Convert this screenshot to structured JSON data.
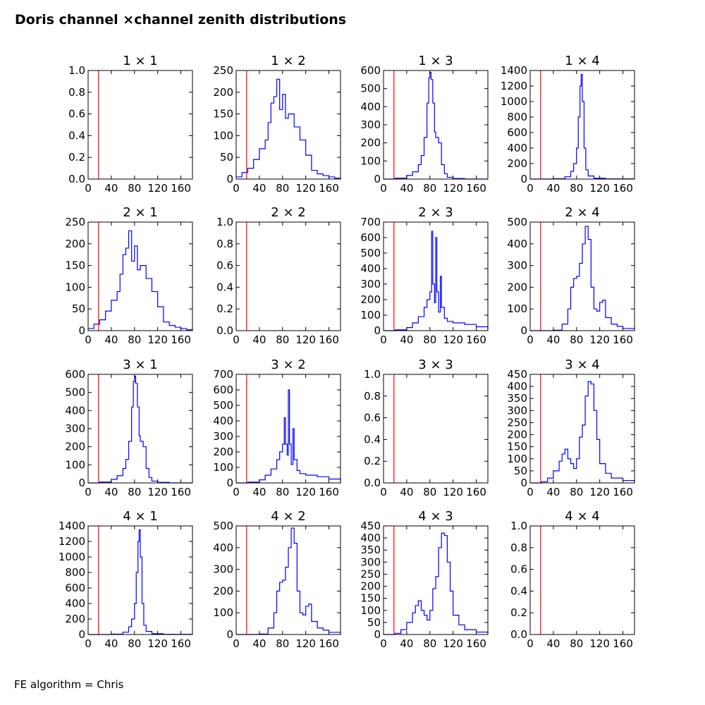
{
  "title": "Doris channel ×channel zenith distributions",
  "footer": "FE algorithm = Chris",
  "colors": {
    "histogram": "#0000ff",
    "cut_line": "#ff0000",
    "axes": "#000000"
  },
  "chart_data": [
    {
      "type": "line",
      "title": "1 × 1",
      "xlim": [
        0,
        180
      ],
      "ylim": [
        0,
        1
      ],
      "xticks": [
        0,
        40,
        80,
        120,
        160
      ],
      "yticks": [
        0.0,
        0.2,
        0.4,
        0.6,
        0.8,
        1.0
      ],
      "ytick_labels": [
        "0.0",
        "0.2",
        "0.4",
        "0.6",
        "0.8",
        "1.0"
      ],
      "cut_x": 18,
      "x": [],
      "y": []
    },
    {
      "type": "line",
      "title": "1 × 2",
      "xlim": [
        0,
        180
      ],
      "ylim": [
        0,
        250
      ],
      "xticks": [
        0,
        40,
        80,
        120,
        160
      ],
      "yticks": [
        0,
        50,
        100,
        150,
        200,
        250
      ],
      "ytick_labels": [
        "0",
        "50",
        "100",
        "150",
        "200",
        "250"
      ],
      "cut_x": 18,
      "x": [
        0,
        10,
        20,
        30,
        40,
        50,
        55,
        60,
        65,
        70,
        75,
        80,
        85,
        90,
        100,
        110,
        120,
        130,
        140,
        150,
        160,
        170,
        180
      ],
      "y": [
        5,
        15,
        25,
        45,
        70,
        90,
        130,
        175,
        190,
        230,
        160,
        195,
        140,
        150,
        120,
        90,
        55,
        20,
        12,
        8,
        5,
        2,
        0
      ]
    },
    {
      "type": "line",
      "title": "1 × 3",
      "xlim": [
        0,
        180
      ],
      "ylim": [
        0,
        600
      ],
      "xticks": [
        0,
        40,
        80,
        120,
        160
      ],
      "yticks": [
        0,
        100,
        200,
        300,
        400,
        500,
        600
      ],
      "ytick_labels": [
        "0",
        "100",
        "200",
        "300",
        "400",
        "500",
        "600"
      ],
      "cut_x": 18,
      "x": [
        0,
        20,
        40,
        50,
        60,
        65,
        70,
        75,
        78,
        80,
        82,
        85,
        88,
        90,
        95,
        100,
        105,
        110,
        120,
        140,
        160,
        180
      ],
      "y": [
        0,
        5,
        20,
        40,
        80,
        130,
        230,
        420,
        560,
        590,
        550,
        420,
        260,
        230,
        200,
        80,
        30,
        10,
        3,
        0,
        0,
        0
      ]
    },
    {
      "type": "line",
      "title": "1 × 4",
      "xlim": [
        0,
        180
      ],
      "ylim": [
        0,
        1400
      ],
      "xticks": [
        0,
        40,
        80,
        120,
        160
      ],
      "yticks": [
        0,
        200,
        400,
        600,
        800,
        1000,
        1200,
        1400
      ],
      "ytick_labels": [
        "0",
        "200",
        "400",
        "600",
        "800",
        "1000",
        "1200",
        "1400"
      ],
      "cut_x": 18,
      "x": [
        0,
        40,
        60,
        70,
        75,
        80,
        83,
        86,
        88,
        90,
        93,
        96,
        100,
        110,
        130,
        180
      ],
      "y": [
        0,
        5,
        30,
        100,
        200,
        400,
        800,
        1200,
        1350,
        1000,
        400,
        120,
        40,
        10,
        2,
        0
      ]
    },
    {
      "type": "line",
      "title": "2 × 1",
      "xlim": [
        0,
        180
      ],
      "ylim": [
        0,
        250
      ],
      "xticks": [
        0,
        40,
        80,
        120,
        160
      ],
      "yticks": [
        0,
        50,
        100,
        150,
        200,
        250
      ],
      "ytick_labels": [
        "0",
        "50",
        "100",
        "150",
        "200",
        "250"
      ],
      "cut_x": 18,
      "x": [
        0,
        10,
        20,
        30,
        40,
        50,
        55,
        60,
        65,
        70,
        75,
        80,
        85,
        90,
        100,
        110,
        120,
        130,
        140,
        150,
        160,
        170,
        180
      ],
      "y": [
        5,
        15,
        25,
        45,
        70,
        90,
        130,
        175,
        190,
        230,
        160,
        195,
        140,
        150,
        120,
        90,
        55,
        20,
        12,
        8,
        5,
        2,
        0
      ]
    },
    {
      "type": "line",
      "title": "2 × 2",
      "xlim": [
        0,
        180
      ],
      "ylim": [
        0,
        1
      ],
      "xticks": [
        0,
        40,
        80,
        120,
        160
      ],
      "yticks": [
        0.0,
        0.2,
        0.4,
        0.6,
        0.8,
        1.0
      ],
      "ytick_labels": [
        "0.0",
        "0.2",
        "0.4",
        "0.6",
        "0.8",
        "1.0"
      ],
      "cut_x": 18,
      "x": [],
      "y": []
    },
    {
      "type": "line",
      "title": "2 × 3",
      "xlim": [
        0,
        180
      ],
      "ylim": [
        0,
        700
      ],
      "xticks": [
        0,
        40,
        80,
        120,
        160
      ],
      "yticks": [
        0,
        100,
        200,
        300,
        400,
        500,
        600,
        700
      ],
      "ytick_labels": [
        "0",
        "100",
        "200",
        "300",
        "400",
        "500",
        "600",
        "700"
      ],
      "cut_x": 18,
      "x": [
        0,
        20,
        40,
        50,
        60,
        70,
        75,
        80,
        83,
        85,
        88,
        90,
        92,
        95,
        98,
        100,
        105,
        110,
        120,
        140,
        160,
        180
      ],
      "y": [
        0,
        5,
        20,
        50,
        90,
        150,
        200,
        250,
        640,
        300,
        180,
        600,
        250,
        120,
        350,
        150,
        80,
        60,
        50,
        40,
        25,
        0
      ]
    },
    {
      "type": "line",
      "title": "2 × 4",
      "xlim": [
        0,
        180
      ],
      "ylim": [
        0,
        500
      ],
      "xticks": [
        0,
        40,
        80,
        120,
        160
      ],
      "yticks": [
        0,
        100,
        200,
        300,
        400,
        500
      ],
      "ytick_labels": [
        "0",
        "100",
        "200",
        "300",
        "400",
        "500"
      ],
      "cut_x": 18,
      "x": [
        0,
        40,
        55,
        65,
        70,
        75,
        80,
        85,
        90,
        95,
        100,
        105,
        110,
        115,
        120,
        125,
        130,
        140,
        150,
        160,
        180
      ],
      "y": [
        0,
        2,
        30,
        100,
        200,
        240,
        250,
        310,
        400,
        480,
        420,
        200,
        100,
        90,
        130,
        140,
        60,
        30,
        20,
        10,
        0
      ]
    },
    {
      "type": "line",
      "title": "3 × 1",
      "xlim": [
        0,
        180
      ],
      "ylim": [
        0,
        600
      ],
      "xticks": [
        0,
        40,
        80,
        120,
        160
      ],
      "yticks": [
        0,
        100,
        200,
        300,
        400,
        500,
        600
      ],
      "ytick_labels": [
        "0",
        "100",
        "200",
        "300",
        "400",
        "500",
        "600"
      ],
      "cut_x": 18,
      "x": [
        0,
        20,
        40,
        50,
        60,
        65,
        70,
        75,
        78,
        80,
        82,
        85,
        88,
        90,
        95,
        100,
        105,
        110,
        120,
        140,
        160,
        180
      ],
      "y": [
        0,
        5,
        20,
        40,
        80,
        130,
        230,
        420,
        560,
        590,
        550,
        420,
        260,
        230,
        200,
        80,
        30,
        10,
        3,
        0,
        0,
        0
      ]
    },
    {
      "type": "line",
      "title": "3 × 2",
      "xlim": [
        0,
        180
      ],
      "ylim": [
        0,
        700
      ],
      "xticks": [
        0,
        40,
        80,
        120,
        160
      ],
      "yticks": [
        0,
        100,
        200,
        300,
        400,
        500,
        600,
        700
      ],
      "ytick_labels": [
        "0",
        "100",
        "200",
        "300",
        "400",
        "500",
        "600",
        "700"
      ],
      "cut_x": 18,
      "x": [
        0,
        20,
        40,
        50,
        60,
        70,
        75,
        80,
        83,
        85,
        88,
        90,
        92,
        95,
        98,
        100,
        105,
        110,
        120,
        140,
        160,
        180
      ],
      "y": [
        0,
        5,
        20,
        50,
        90,
        150,
        200,
        250,
        420,
        250,
        180,
        600,
        250,
        120,
        350,
        150,
        80,
        60,
        50,
        40,
        25,
        0
      ]
    },
    {
      "type": "line",
      "title": "3 × 3",
      "xlim": [
        0,
        180
      ],
      "ylim": [
        0,
        1
      ],
      "xticks": [
        0,
        40,
        80,
        120,
        160
      ],
      "yticks": [
        0.0,
        0.2,
        0.4,
        0.6,
        0.8,
        1.0
      ],
      "ytick_labels": [
        "0.0",
        "0.2",
        "0.4",
        "0.6",
        "0.8",
        "1.0"
      ],
      "cut_x": 18,
      "x": [],
      "y": []
    },
    {
      "type": "line",
      "title": "3 × 4",
      "xlim": [
        0,
        180
      ],
      "ylim": [
        0,
        450
      ],
      "xticks": [
        0,
        40,
        80,
        120,
        160
      ],
      "yticks": [
        0,
        50,
        100,
        150,
        200,
        250,
        300,
        350,
        400,
        450
      ],
      "ytick_labels": [
        "0",
        "50",
        "100",
        "150",
        "200",
        "250",
        "300",
        "350",
        "400",
        "450"
      ],
      "cut_x": 18,
      "x": [
        0,
        20,
        30,
        40,
        50,
        55,
        60,
        65,
        70,
        75,
        80,
        85,
        90,
        95,
        100,
        105,
        110,
        115,
        120,
        130,
        140,
        160,
        180
      ],
      "y": [
        0,
        5,
        20,
        50,
        90,
        120,
        140,
        100,
        80,
        60,
        100,
        190,
        240,
        360,
        420,
        410,
        300,
        180,
        80,
        40,
        20,
        10,
        0
      ]
    },
    {
      "type": "line",
      "title": "4 × 1",
      "xlim": [
        0,
        180
      ],
      "ylim": [
        0,
        1400
      ],
      "xticks": [
        0,
        40,
        80,
        120,
        160
      ],
      "yticks": [
        0,
        200,
        400,
        600,
        800,
        1000,
        1200,
        1400
      ],
      "ytick_labels": [
        "0",
        "200",
        "400",
        "600",
        "800",
        "1000",
        "1200",
        "1400"
      ],
      "cut_x": 18,
      "x": [
        0,
        40,
        60,
        70,
        75,
        80,
        83,
        86,
        88,
        90,
        93,
        96,
        100,
        110,
        130,
        180
      ],
      "y": [
        0,
        5,
        30,
        100,
        200,
        400,
        800,
        1200,
        1350,
        1000,
        400,
        120,
        40,
        10,
        2,
        0
      ]
    },
    {
      "type": "line",
      "title": "4 × 2",
      "xlim": [
        0,
        180
      ],
      "ylim": [
        0,
        500
      ],
      "xticks": [
        0,
        40,
        80,
        120,
        160
      ],
      "yticks": [
        0,
        100,
        200,
        300,
        400,
        500
      ],
      "ytick_labels": [
        "0",
        "100",
        "200",
        "300",
        "400",
        "500"
      ],
      "cut_x": 18,
      "x": [
        0,
        40,
        55,
        65,
        70,
        75,
        80,
        85,
        90,
        95,
        100,
        105,
        110,
        115,
        120,
        125,
        130,
        140,
        150,
        160,
        180
      ],
      "y": [
        0,
        2,
        30,
        100,
        200,
        240,
        250,
        310,
        400,
        490,
        420,
        200,
        100,
        90,
        130,
        140,
        60,
        30,
        20,
        10,
        0
      ]
    },
    {
      "type": "line",
      "title": "4 × 3",
      "xlim": [
        0,
        180
      ],
      "ylim": [
        0,
        450
      ],
      "xticks": [
        0,
        40,
        80,
        120,
        160
      ],
      "yticks": [
        0,
        50,
        100,
        150,
        200,
        250,
        300,
        350,
        400,
        450
      ],
      "ytick_labels": [
        "0",
        "50",
        "100",
        "150",
        "200",
        "250",
        "300",
        "350",
        "400",
        "450"
      ],
      "cut_x": 18,
      "x": [
        0,
        20,
        30,
        40,
        50,
        55,
        60,
        65,
        70,
        75,
        80,
        85,
        90,
        95,
        100,
        105,
        110,
        115,
        120,
        130,
        140,
        160,
        180
      ],
      "y": [
        0,
        5,
        20,
        50,
        90,
        120,
        140,
        100,
        80,
        60,
        100,
        190,
        240,
        360,
        420,
        410,
        300,
        180,
        80,
        40,
        20,
        10,
        0
      ]
    },
    {
      "type": "line",
      "title": "4 × 4",
      "xlim": [
        0,
        180
      ],
      "ylim": [
        0,
        1
      ],
      "xticks": [
        0,
        40,
        80,
        120,
        160
      ],
      "yticks": [
        0.0,
        0.2,
        0.4,
        0.6,
        0.8,
        1.0
      ],
      "ytick_labels": [
        "0.0",
        "0.2",
        "0.4",
        "0.6",
        "0.8",
        "1.0"
      ],
      "cut_x": 18,
      "x": [],
      "y": []
    }
  ]
}
